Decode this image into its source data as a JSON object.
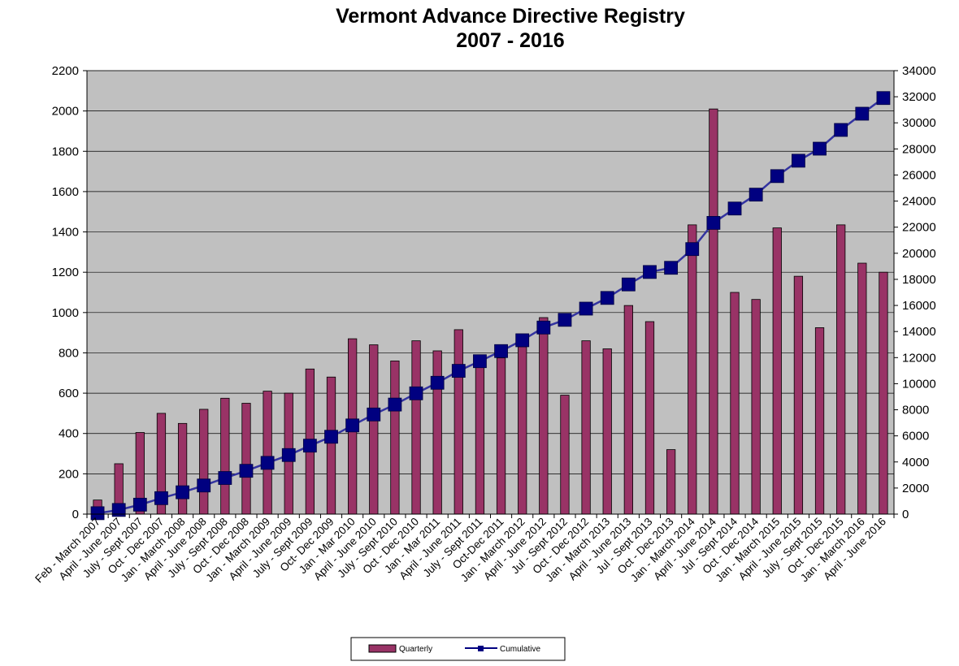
{
  "chart_data": {
    "type": "bar",
    "title": "Vermont Advance Directive Registry",
    "subtitle": "2007 - 2016",
    "categories": [
      "Feb - March 2007",
      "April - June 2007",
      "July - Sept 2007",
      "Oct - Dec 2007",
      "Jan - March 2008",
      "April - June 2008",
      "July - Sept 2008",
      "Oct - Dec 2008",
      "Jan - March 2009",
      "April - June 2009",
      "July - Sept 2009",
      "Oct- Dec 2009",
      "Jan - Mar 2010",
      "April - June 2010",
      "July - Sept 2010",
      "Oct - Dec 2010",
      "Jan - Mar 2011",
      "April - June 2011",
      "July - Sept 2011",
      "Oct-Dec 2011",
      "Jan - March 2012",
      "April - June 2012",
      "Jul - Sept 2012",
      "Oct - Dec 2012",
      "Jan - March 2013",
      "April - June 2013",
      "Jul - Sept 2013",
      "Oct - Dec 2013",
      "Jan - March 2014",
      "April - June 2014",
      "Jul - Sept 2014",
      "Oct - Dec 2014",
      "Jan - March 2015",
      "April - June 2015",
      "July - Sept 2015",
      "Oct - Dec 2015",
      "Jan - March 2016",
      "April - June 2016"
    ],
    "series": [
      {
        "name": "Quarterly",
        "axis": "left",
        "kind": "bar",
        "color": "#993366",
        "values": [
          70,
          250,
          405,
          500,
          450,
          520,
          575,
          550,
          610,
          600,
          720,
          680,
          870,
          840,
          760,
          860,
          810,
          915,
          740,
          775,
          830,
          975,
          590,
          860,
          820,
          1035,
          955,
          320,
          1435,
          2010,
          1100,
          1065,
          1420,
          1180,
          925,
          1435,
          1245,
          1200
        ]
      },
      {
        "name": "Cumulative",
        "axis": "right",
        "kind": "line",
        "color": "#000080",
        "values": [
          70,
          320,
          725,
          1225,
          1675,
          2195,
          2770,
          3320,
          3930,
          4530,
          5250,
          5930,
          6800,
          7640,
          8400,
          9260,
          10070,
          10985,
          11725,
          12500,
          13330,
          14305,
          14895,
          15755,
          16575,
          17610,
          18565,
          18885,
          20320,
          22330,
          23430,
          24495,
          25915,
          27095,
          28020,
          29455,
          30700,
          31900
        ]
      }
    ],
    "y_left": {
      "min": 0,
      "max": 2200,
      "ticks": [
        0,
        200,
        400,
        600,
        800,
        1000,
        1200,
        1400,
        1600,
        1800,
        2000,
        2200
      ]
    },
    "y_right": {
      "min": 0,
      "max": 34000,
      "ticks": [
        0,
        2000,
        4000,
        6000,
        8000,
        10000,
        12000,
        14000,
        16000,
        18000,
        20000,
        22000,
        24000,
        26000,
        28000,
        30000,
        32000,
        34000
      ]
    },
    "grid": true,
    "plot_background": "#c0c0c0",
    "legend_position": "bottom-center"
  }
}
